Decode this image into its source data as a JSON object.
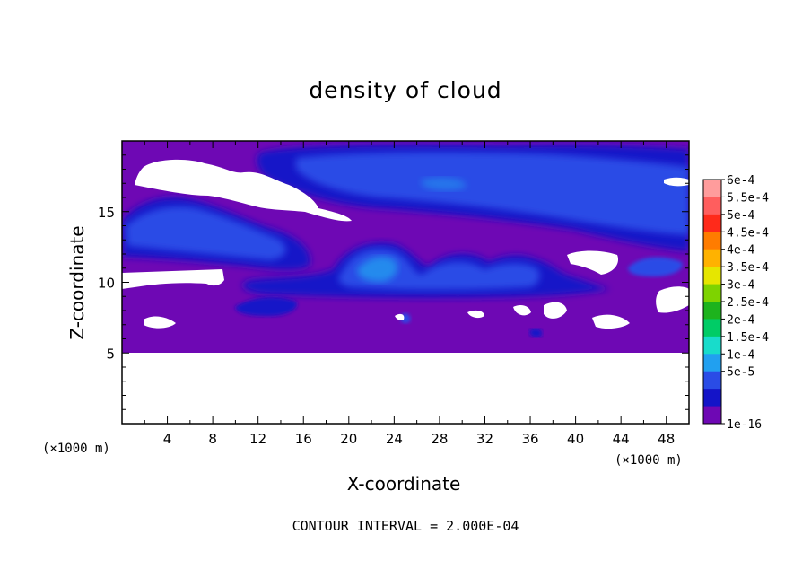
{
  "chart_data": {
    "type": "heatmap",
    "title": "density of cloud",
    "xlabel": "X-coordinate",
    "ylabel": "Z-coordinate",
    "x_unit": "(×1000 m)",
    "y_unit": "(×1000 m)",
    "xlim": [
      0,
      50
    ],
    "ylim": [
      0,
      20
    ],
    "x_ticks": [
      "4",
      "8",
      "12",
      "16",
      "20",
      "24",
      "28",
      "32",
      "36",
      "40",
      "44",
      "48"
    ],
    "y_ticks": [
      "5",
      "10",
      "15"
    ],
    "footnote": "CONTOUR INTERVAL = 2.000E-04",
    "colorbar": {
      "labels": [
        "6e-4",
        "5.5e-4",
        "5e-4",
        "4.5e-4",
        "4e-4",
        "3.5e-4",
        "3e-4",
        "2.5e-4",
        "2e-4",
        "1.5e-4",
        "1e-4",
        "5e-5",
        "1e-16"
      ],
      "colors": [
        "#ff9c9c",
        "#ff5e5e",
        "#ff2a1a",
        "#ff7c00",
        "#ffb200",
        "#e6e600",
        "#7ed300",
        "#1db31d",
        "#00cc66",
        "#18dccb",
        "#21a0f0",
        "#2a4ce6",
        "#1414c8",
        "#6e08b4"
      ]
    },
    "field_summary": {
      "background_value": "1e-16",
      "no_data_below_z": 5,
      "cloud_bands": [
        {
          "x_range": [
            13,
            49
          ],
          "z_range": [
            12.5,
            19.5
          ],
          "peak_value": "1e-4"
        },
        {
          "x_range": [
            0,
            15
          ],
          "z_range": [
            10.5,
            16.5
          ],
          "peak_value": "1e-4"
        },
        {
          "x_range": [
            17,
            40
          ],
          "z_range": [
            9.5,
            12.7
          ],
          "peak_value": "1.5e-4"
        }
      ]
    }
  }
}
